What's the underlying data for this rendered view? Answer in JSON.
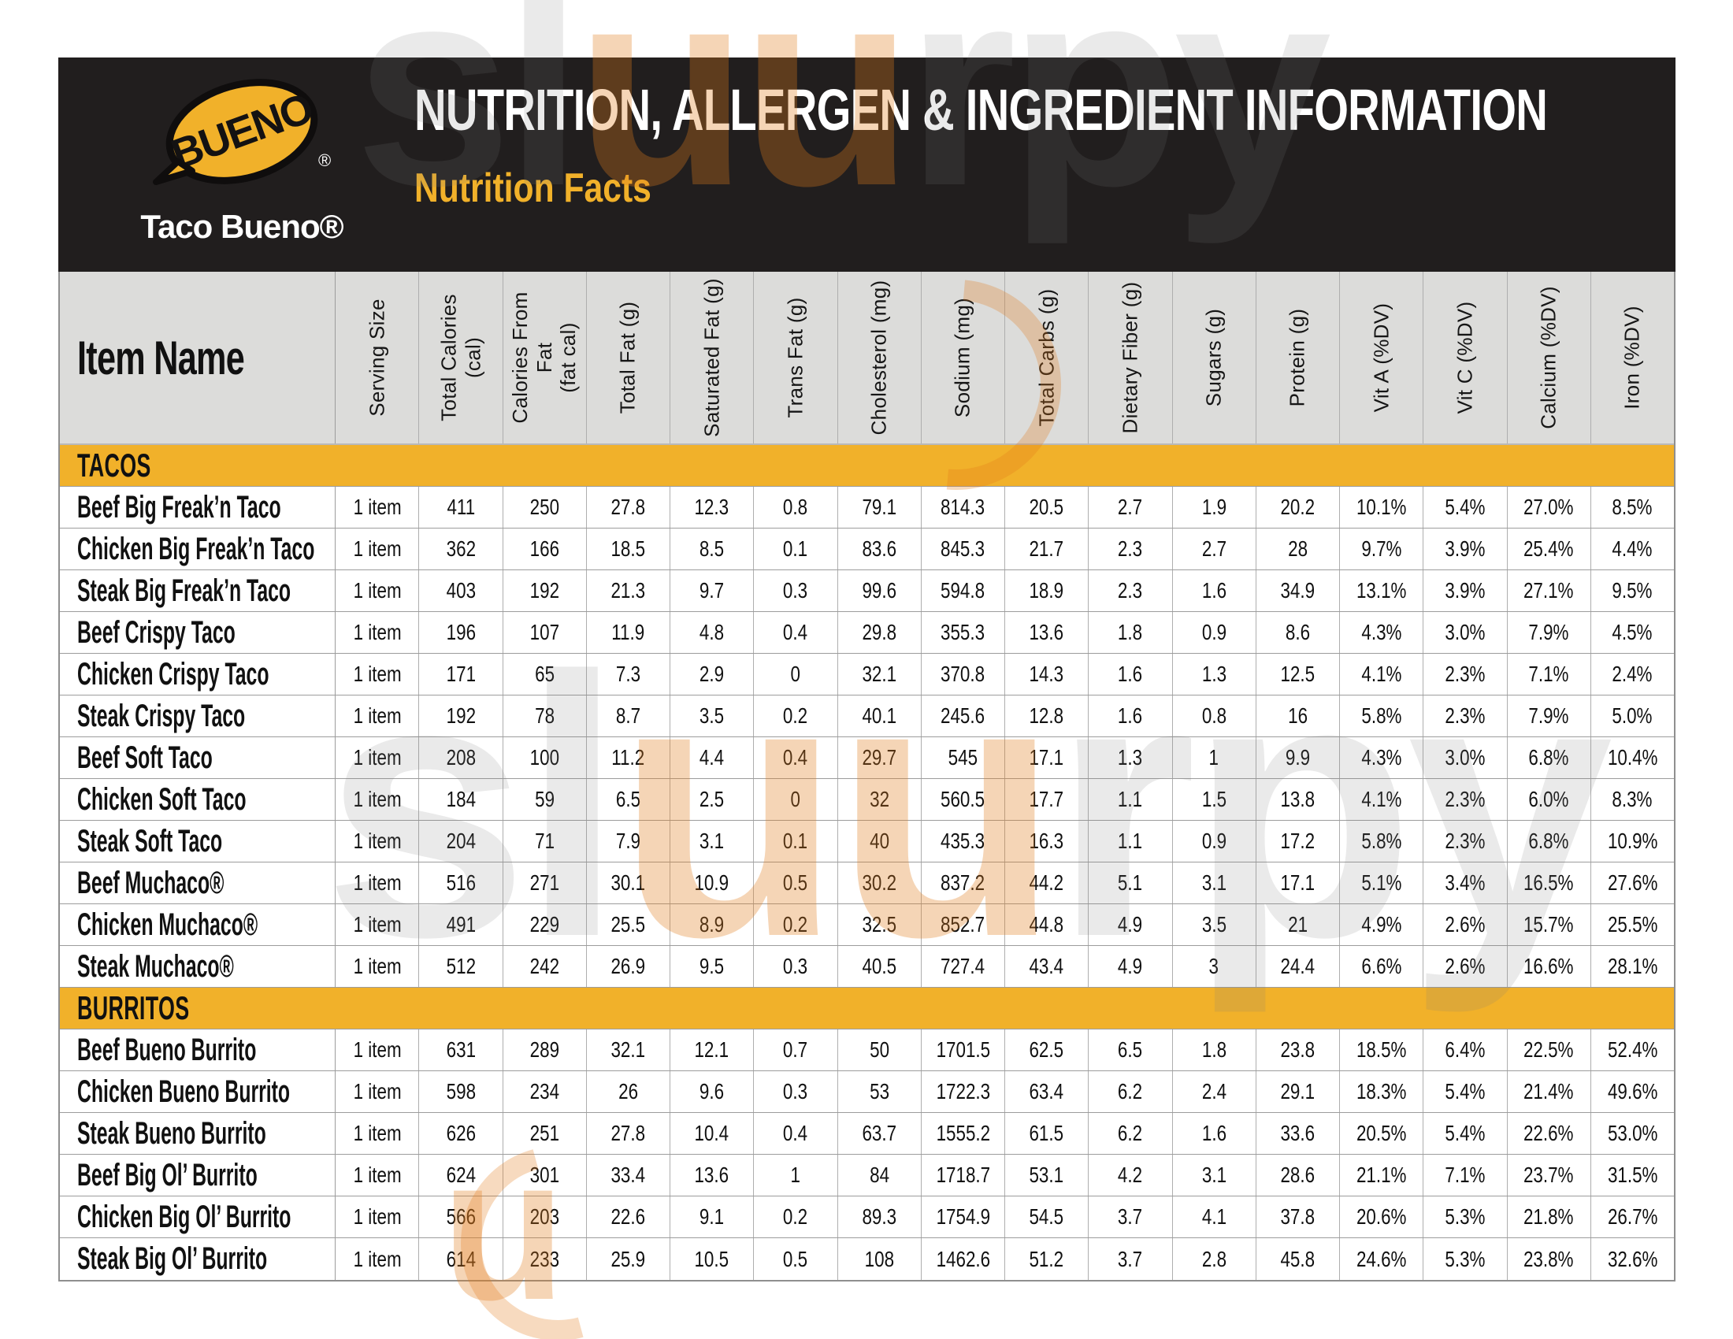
{
  "header": {
    "logo_bubble_text": "BUENO",
    "logo_reg_mark": "®",
    "brand": "Taco Bueno®",
    "title": "NUTRITION, ALLERGEN & INGREDIENT INFORMATION",
    "subtitle": "Nutrition Facts"
  },
  "colors": {
    "brand_yellow": "#F1B12A",
    "masthead_black": "#211E1E",
    "column_header_gray": "#DCDCDA",
    "grid_border_gray": "#9C9C9C",
    "watermark_orange": "#E17C1C",
    "watermark_gray": "#7D7D7D"
  },
  "watermark": {
    "gray_start": "sl",
    "orange_mid": "uu",
    "gray_end": "rpy",
    "orange_bottom": "u"
  },
  "table": {
    "item_col_header": "Item Name",
    "columns": [
      {
        "l1": "Serving Size",
        "l2": ""
      },
      {
        "l1": "Total Calories",
        "l2": "(cal)"
      },
      {
        "l1": "Calories From Fat",
        "l2": "(fat cal)"
      },
      {
        "l1": "Total Fat (g)",
        "l2": ""
      },
      {
        "l1": "Saturated Fat (g)",
        "l2": ""
      },
      {
        "l1": "Trans Fat (g)",
        "l2": ""
      },
      {
        "l1": "Cholesterol (mg)",
        "l2": ""
      },
      {
        "l1": "Sodium (mg)",
        "l2": ""
      },
      {
        "l1": "Total Carbs (g)",
        "l2": ""
      },
      {
        "l1": "Dietary Fiber (g)",
        "l2": ""
      },
      {
        "l1": "Sugars (g)",
        "l2": ""
      },
      {
        "l1": "Protein (g)",
        "l2": ""
      },
      {
        "l1": "Vit A (%DV)",
        "l2": ""
      },
      {
        "l1": "Vit C (%DV)",
        "l2": ""
      },
      {
        "l1": "Calcium (%DV)",
        "l2": ""
      },
      {
        "l1": "Iron (%DV)",
        "l2": ""
      }
    ],
    "sections": [
      {
        "name": "TACOS",
        "rows": [
          {
            "name": "Beef Big Freak’n Taco",
            "values": [
              "1 item",
              "411",
              "250",
              "27.8",
              "12.3",
              "0.8",
              "79.1",
              "814.3",
              "20.5",
              "2.7",
              "1.9",
              "20.2",
              "10.1%",
              "5.4%",
              "27.0%",
              "8.5%"
            ]
          },
          {
            "name": "Chicken Big Freak’n Taco",
            "values": [
              "1 item",
              "362",
              "166",
              "18.5",
              "8.5",
              "0.1",
              "83.6",
              "845.3",
              "21.7",
              "2.3",
              "2.7",
              "28",
              "9.7%",
              "3.9%",
              "25.4%",
              "4.4%"
            ]
          },
          {
            "name": "Steak Big Freak’n Taco",
            "values": [
              "1 item",
              "403",
              "192",
              "21.3",
              "9.7",
              "0.3",
              "99.6",
              "594.8",
              "18.9",
              "2.3",
              "1.6",
              "34.9",
              "13.1%",
              "3.9%",
              "27.1%",
              "9.5%"
            ]
          },
          {
            "name": "Beef Crispy Taco",
            "values": [
              "1 item",
              "196",
              "107",
              "11.9",
              "4.8",
              "0.4",
              "29.8",
              "355.3",
              "13.6",
              "1.8",
              "0.9",
              "8.6",
              "4.3%",
              "3.0%",
              "7.9%",
              "4.5%"
            ]
          },
          {
            "name": "Chicken Crispy Taco",
            "values": [
              "1 item",
              "171",
              "65",
              "7.3",
              "2.9",
              "0",
              "32.1",
              "370.8",
              "14.3",
              "1.6",
              "1.3",
              "12.5",
              "4.1%",
              "2.3%",
              "7.1%",
              "2.4%"
            ]
          },
          {
            "name": "Steak Crispy Taco",
            "values": [
              "1 item",
              "192",
              "78",
              "8.7",
              "3.5",
              "0.2",
              "40.1",
              "245.6",
              "12.8",
              "1.6",
              "0.8",
              "16",
              "5.8%",
              "2.3%",
              "7.9%",
              "5.0%"
            ]
          },
          {
            "name": "Beef Soft Taco",
            "values": [
              "1 item",
              "208",
              "100",
              "11.2",
              "4.4",
              "0.4",
              "29.7",
              "545",
              "17.1",
              "1.3",
              "1",
              "9.9",
              "4.3%",
              "3.0%",
              "6.8%",
              "10.4%"
            ]
          },
          {
            "name": "Chicken Soft Taco",
            "values": [
              "1 item",
              "184",
              "59",
              "6.5",
              "2.5",
              "0",
              "32",
              "560.5",
              "17.7",
              "1.1",
              "1.5",
              "13.8",
              "4.1%",
              "2.3%",
              "6.0%",
              "8.3%"
            ]
          },
          {
            "name": "Steak Soft Taco",
            "values": [
              "1 item",
              "204",
              "71",
              "7.9",
              "3.1",
              "0.1",
              "40",
              "435.3",
              "16.3",
              "1.1",
              "0.9",
              "17.2",
              "5.8%",
              "2.3%",
              "6.8%",
              "10.9%"
            ]
          },
          {
            "name": "Beef Muchaco®",
            "values": [
              "1 item",
              "516",
              "271",
              "30.1",
              "10.9",
              "0.5",
              "30.2",
              "837.2",
              "44.2",
              "5.1",
              "3.1",
              "17.1",
              "5.1%",
              "3.4%",
              "16.5%",
              "27.6%"
            ]
          },
          {
            "name": "Chicken Muchaco®",
            "values": [
              "1 item",
              "491",
              "229",
              "25.5",
              "8.9",
              "0.2",
              "32.5",
              "852.7",
              "44.8",
              "4.9",
              "3.5",
              "21",
              "4.9%",
              "2.6%",
              "15.7%",
              "25.5%"
            ]
          },
          {
            "name": "Steak Muchaco®",
            "values": [
              "1 item",
              "512",
              "242",
              "26.9",
              "9.5",
              "0.3",
              "40.5",
              "727.4",
              "43.4",
              "4.9",
              "3",
              "24.4",
              "6.6%",
              "2.6%",
              "16.6%",
              "28.1%"
            ]
          }
        ]
      },
      {
        "name": "BURRITOS",
        "rows": [
          {
            "name": "Beef Bueno Burrito",
            "values": [
              "1 item",
              "631",
              "289",
              "32.1",
              "12.1",
              "0.7",
              "50",
              "1701.5",
              "62.5",
              "6.5",
              "1.8",
              "23.8",
              "18.5%",
              "6.4%",
              "22.5%",
              "52.4%"
            ]
          },
          {
            "name": "Chicken Bueno Burrito",
            "values": [
              "1 item",
              "598",
              "234",
              "26",
              "9.6",
              "0.3",
              "53",
              "1722.3",
              "63.4",
              "6.2",
              "2.4",
              "29.1",
              "18.3%",
              "5.4%",
              "21.4%",
              "49.6%"
            ]
          },
          {
            "name": "Steak Bueno Burrito",
            "values": [
              "1 item",
              "626",
              "251",
              "27.8",
              "10.4",
              "0.4",
              "63.7",
              "1555.2",
              "61.5",
              "6.2",
              "1.6",
              "33.6",
              "20.5%",
              "5.4%",
              "22.6%",
              "53.0%"
            ]
          },
          {
            "name": "Beef Big Ol’ Burrito",
            "values": [
              "1 item",
              "624",
              "301",
              "33.4",
              "13.6",
              "1",
              "84",
              "1718.7",
              "53.1",
              "4.2",
              "3.1",
              "28.6",
              "21.1%",
              "7.1%",
              "23.7%",
              "31.5%"
            ]
          },
          {
            "name": "Chicken Big Ol’ Burrito",
            "values": [
              "1 item",
              "566",
              "203",
              "22.6",
              "9.1",
              "0.2",
              "89.3",
              "1754.9",
              "54.5",
              "3.7",
              "4.1",
              "37.8",
              "20.6%",
              "5.3%",
              "21.8%",
              "26.7%"
            ]
          },
          {
            "name": "Steak Big Ol’ Burrito",
            "values": [
              "1 item",
              "614",
              "233",
              "25.9",
              "10.5",
              "0.5",
              "108",
              "1462.6",
              "51.2",
              "3.7",
              "2.8",
              "45.8",
              "24.6%",
              "5.3%",
              "23.8%",
              "32.6%"
            ]
          }
        ]
      }
    ]
  }
}
